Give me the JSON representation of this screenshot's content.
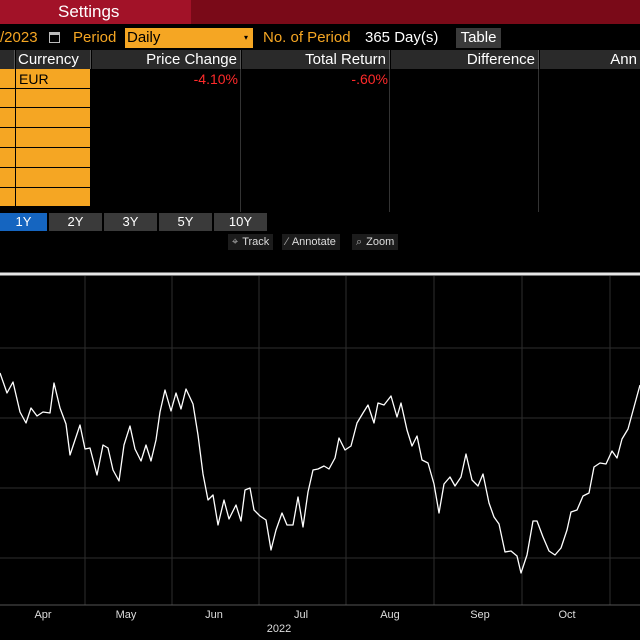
{
  "header": {
    "settings_tab": "Settings"
  },
  "controls": {
    "date_value": "/2023",
    "calendar_icon": "calendar-icon",
    "period_label": "Period",
    "period_value": "Daily",
    "period_caret": "▾",
    "nop_label": "No. of Period",
    "nop_value": "365 Day(s)",
    "table_button": "Table"
  },
  "table": {
    "headers": [
      "Currency",
      "Price Change",
      "Total Return",
      "Difference",
      "Ann"
    ],
    "row": {
      "currency": "EUR",
      "price_change": "-4.10%",
      "total_return": "-.60%"
    }
  },
  "range_tabs": [
    {
      "label": "1Y",
      "active": true
    },
    {
      "label": "2Y",
      "active": false
    },
    {
      "label": "3Y",
      "active": false
    },
    {
      "label": "5Y",
      "active": false
    },
    {
      "label": "10Y",
      "active": false
    }
  ],
  "tools": [
    {
      "label": "Track",
      "icon": "crosshair-icon",
      "glyph": "⌖"
    },
    {
      "label": "Annotate",
      "icon": "pencil-icon",
      "glyph": "∕"
    },
    {
      "label": "Zoom",
      "icon": "magnifier-icon",
      "glyph": "⌕"
    }
  ],
  "colors": {
    "accent": "#f5a623",
    "negative": "#ff2a2a",
    "active_tab": "#1565c0",
    "header_bar": "#7a0a18"
  },
  "chart_data": {
    "type": "line",
    "year_label": "2022",
    "months": [
      "Apr",
      "May",
      "Jun",
      "Jul",
      "Aug",
      "Sep",
      "Oct"
    ],
    "month_x": [
      43,
      126,
      214,
      301,
      390,
      480,
      567
    ],
    "grid_y": [
      348,
      418,
      488,
      558
    ],
    "baseline_y": 274,
    "series": [
      {
        "values": [
          [
            0,
            373
          ],
          [
            7,
            393
          ],
          [
            13,
            382
          ],
          [
            20,
            412
          ],
          [
            26,
            423
          ],
          [
            31,
            408
          ],
          [
            37,
            416
          ],
          [
            43,
            412
          ],
          [
            50,
            413
          ],
          [
            54,
            383
          ],
          [
            60,
            408
          ],
          [
            66,
            424
          ],
          [
            70,
            455
          ],
          [
            75,
            440
          ],
          [
            80,
            425
          ],
          [
            85,
            449
          ],
          [
            90,
            448
          ],
          [
            97,
            475
          ],
          [
            103,
            445
          ],
          [
            108,
            448
          ],
          [
            113,
            470
          ],
          [
            119,
            481
          ],
          [
            124,
            445
          ],
          [
            130,
            426
          ],
          [
            135,
            449
          ],
          [
            141,
            461
          ],
          [
            146,
            445
          ],
          [
            151,
            461
          ],
          [
            156,
            440
          ],
          [
            160,
            412
          ],
          [
            165,
            390
          ],
          [
            171,
            411
          ],
          [
            176,
            393
          ],
          [
            181,
            409
          ],
          [
            186,
            389
          ],
          [
            193,
            404
          ],
          [
            198,
            435
          ],
          [
            203,
            474
          ],
          [
            208,
            500
          ],
          [
            213,
            495
          ],
          [
            218,
            525
          ],
          [
            224,
            500
          ],
          [
            229,
            519
          ],
          [
            236,
            505
          ],
          [
            241,
            521
          ],
          [
            245,
            490
          ],
          [
            250,
            488
          ],
          [
            254,
            510
          ],
          [
            260,
            516
          ],
          [
            266,
            520
          ],
          [
            271,
            550
          ],
          [
            276,
            530
          ],
          [
            282,
            513
          ],
          [
            287,
            525
          ],
          [
            293,
            525
          ],
          [
            298,
            497
          ],
          [
            303,
            527
          ],
          [
            308,
            492
          ],
          [
            313,
            470
          ],
          [
            318,
            469
          ],
          [
            324,
            466
          ],
          [
            329,
            469
          ],
          [
            335,
            458
          ],
          [
            339,
            438
          ],
          [
            345,
            450
          ],
          [
            351,
            446
          ],
          [
            357,
            423
          ],
          [
            363,
            413
          ],
          [
            368,
            405
          ],
          [
            374,
            423
          ],
          [
            378,
            403
          ],
          [
            384,
            405
          ],
          [
            391,
            396
          ],
          [
            397,
            417
          ],
          [
            401,
            403
          ],
          [
            407,
            430
          ],
          [
            412,
            446
          ],
          [
            417,
            436
          ],
          [
            422,
            460
          ],
          [
            428,
            463
          ],
          [
            434,
            484
          ],
          [
            439,
            513
          ],
          [
            444,
            484
          ],
          [
            450,
            477
          ],
          [
            455,
            486
          ],
          [
            461,
            477
          ],
          [
            466,
            454
          ],
          [
            472,
            480
          ],
          [
            478,
            486
          ],
          [
            483,
            474
          ],
          [
            489,
            503
          ],
          [
            494,
            517
          ],
          [
            499,
            524
          ],
          [
            505,
            552
          ],
          [
            511,
            551
          ],
          [
            517,
            556
          ],
          [
            521,
            573
          ],
          [
            527,
            555
          ],
          [
            533,
            521
          ],
          [
            537,
            521
          ],
          [
            543,
            537
          ],
          [
            549,
            551
          ],
          [
            555,
            555
          ],
          [
            561,
            548
          ],
          [
            567,
            530
          ],
          [
            571,
            512
          ],
          [
            577,
            510
          ],
          [
            583,
            496
          ],
          [
            589,
            493
          ],
          [
            594,
            467
          ],
          [
            600,
            463
          ],
          [
            606,
            464
          ],
          [
            612,
            451
          ],
          [
            617,
            458
          ],
          [
            622,
            439
          ],
          [
            628,
            429
          ],
          [
            634,
            407
          ],
          [
            640,
            385
          ]
        ]
      }
    ]
  }
}
